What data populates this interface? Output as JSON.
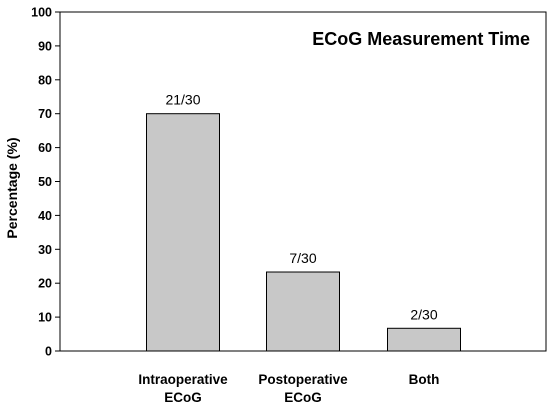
{
  "chart_data": {
    "type": "bar",
    "title": "ECoG Measurement Time",
    "ylabel": "Percentage  (%)",
    "xlabel": "",
    "ylim": [
      0,
      100
    ],
    "yticks": [
      "0",
      "10",
      "20",
      "30",
      "40",
      "50",
      "60",
      "70",
      "80",
      "90",
      "100"
    ],
    "categories": [
      [
        "Intraoperative",
        "ECoG"
      ],
      [
        "Postoperative",
        "ECoG"
      ],
      [
        "Both"
      ]
    ],
    "values": [
      70,
      23.3,
      6.7
    ],
    "data_labels": [
      "21/30",
      "7/30",
      "2/30"
    ],
    "grid": false,
    "bar_color": "#c8c8c8",
    "bar_edge_color": "#000000",
    "title_placement": "top-right inside plot"
  }
}
